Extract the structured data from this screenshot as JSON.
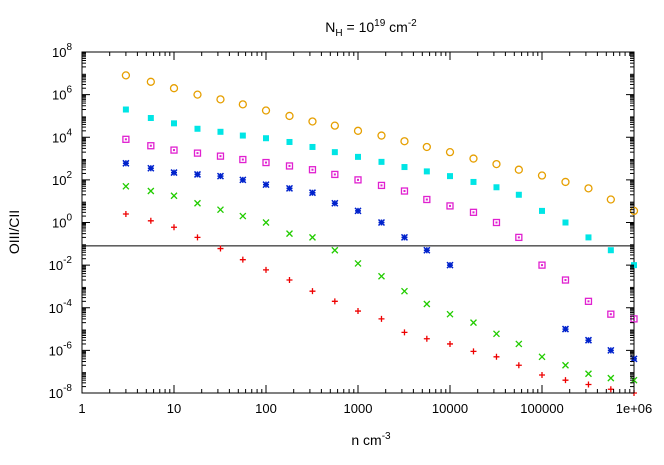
{
  "chart_data": {
    "type": "scatter",
    "title": {
      "base": "N",
      "sub": "H",
      "mid": " = 10",
      "sup": "19",
      "unit": " cm",
      "unit_sup": "-2"
    },
    "xlabel": {
      "base": "n cm",
      "sup": "-3"
    },
    "ylabel": "OIII/CII",
    "x_scale": "log",
    "y_scale": "log",
    "xlim": [
      1,
      1000000
    ],
    "ylim": [
      1e-08,
      100000000.0
    ],
    "x_ticks": [
      {
        "value": 1,
        "label": "1"
      },
      {
        "value": 10,
        "label": "10"
      },
      {
        "value": 100,
        "label": "100"
      },
      {
        "value": 1000,
        "label": "1000"
      },
      {
        "value": 10000,
        "label": "10000"
      },
      {
        "value": 100000,
        "label": "100000"
      },
      {
        "value": 1000000,
        "label": "1e+06"
      }
    ],
    "y_ticks": [
      {
        "value": 1e-08,
        "base": "10",
        "exp": "-8"
      },
      {
        "value": 1e-06,
        "base": "10",
        "exp": "-6"
      },
      {
        "value": 0.0001,
        "base": "10",
        "exp": "-4"
      },
      {
        "value": 0.01,
        "base": "10",
        "exp": "-2"
      },
      {
        "value": 1,
        "base": "10",
        "exp": "0"
      },
      {
        "value": 100.0,
        "base": "10",
        "exp": "2"
      },
      {
        "value": 10000.0,
        "base": "10",
        "exp": "4"
      },
      {
        "value": 1000000.0,
        "base": "10",
        "exp": "6"
      },
      {
        "value": 100000000.0,
        "base": "10",
        "exp": "8"
      }
    ],
    "reference_line": {
      "y": 0.08,
      "color": "#000000"
    },
    "x": [
      3,
      5.6,
      10,
      18,
      32,
      56,
      100,
      180,
      320,
      560,
      1000,
      1800,
      3200,
      5600,
      10000,
      18000,
      32000,
      56000,
      100000,
      180000,
      320000,
      560000,
      1000000
    ],
    "series": [
      {
        "marker": "circle",
        "color": "#e69f00",
        "values": [
          8000000.0,
          4000000.0,
          2000000.0,
          1000000.0,
          600000.0,
          350000.0,
          180000.0,
          100000.0,
          55000.0,
          35000.0,
          20000.0,
          12000.0,
          6500.0,
          3500.0,
          2000.0,
          1000.0,
          550.0,
          300.0,
          160.0,
          80.0,
          40.0,
          12.0,
          3.5
        ]
      },
      {
        "marker": "filled-square",
        "color": "#00e5e5",
        "values": [
          200000.0,
          80000.0,
          45000.0,
          25000.0,
          18000.0,
          12000.0,
          9000.0,
          6000.0,
          3500.0,
          2000.0,
          1200.0,
          700.0,
          400.0,
          250.0,
          150.0,
          80.0,
          45.0,
          20.0,
          3.5,
          1,
          0.2,
          0.05,
          0.01
        ]
      },
      {
        "marker": "open-square",
        "color": "#e020d0",
        "values": [
          8000.0,
          4000.0,
          2500.0,
          1800.0,
          1300.0,
          900.0,
          650.0,
          450.0,
          300.0,
          180.0,
          100.0,
          55.0,
          30.0,
          12.0,
          6,
          3,
          1,
          0.2,
          0.01,
          0.002,
          0.0002,
          5e-05,
          3e-05
        ]
      },
      {
        "marker": "star",
        "color": "#0022cc",
        "values": [
          600.0,
          350.0,
          220.0,
          180.0,
          150.0,
          100.0,
          60.0,
          40.0,
          25.0,
          8,
          3.5,
          1,
          0.2,
          0.05,
          0.01,
          null,
          null,
          null,
          null,
          1e-05,
          3e-06,
          1e-06,
          4e-07
        ]
      },
      {
        "marker": "cross",
        "color": "#22cc00",
        "values": [
          50.0,
          30.0,
          18.0,
          8,
          4,
          2,
          1,
          0.3,
          0.2,
          0.05,
          0.012,
          0.003,
          0.0006,
          0.00015,
          5e-05,
          2e-05,
          6e-06,
          2e-06,
          5e-07,
          2e-07,
          8e-08,
          5e-08,
          4e-08
        ]
      },
      {
        "marker": "plus",
        "color": "#ee0000",
        "values": [
          2.5,
          1.2,
          0.6,
          0.2,
          0.06,
          0.018,
          0.006,
          0.002,
          0.0006,
          0.0002,
          7e-05,
          3e-05,
          7e-06,
          3.5e-06,
          2e-06,
          9e-07,
          5e-07,
          2e-07,
          7e-08,
          4e-08,
          2.5e-08,
          1.5e-08,
          1e-08
        ]
      }
    ]
  }
}
